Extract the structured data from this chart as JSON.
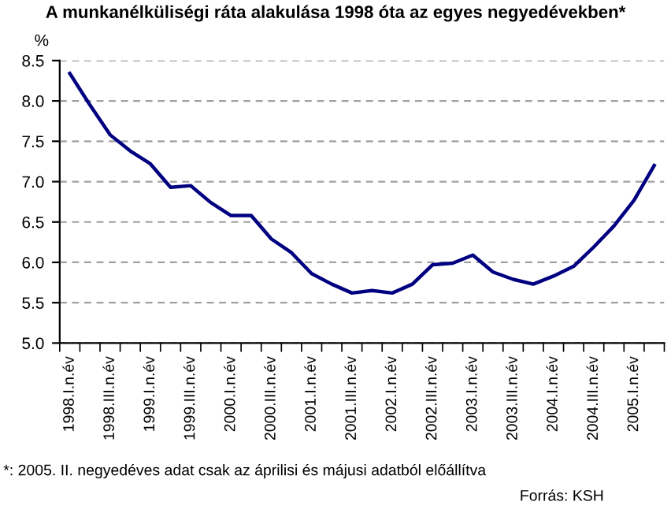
{
  "chart_data": {
    "type": "line",
    "title": "A munkanélküliségi ráta alakulása 1998 óta az egyes negyedévekben*",
    "ylabel": "%",
    "categories": [
      "1998.I.n.év",
      null,
      "1998.III.n.év",
      null,
      "1999.I.n.év",
      null,
      "1999.III.n.év",
      null,
      "2000.I.n.év",
      null,
      "2000.III.n.év",
      null,
      "2001.I.n.év",
      null,
      "2001.III.n.év",
      null,
      "2002.I.n.év",
      null,
      "2002.III.n.év",
      null,
      "2003.I.n.év",
      null,
      "2003.III.n.év",
      null,
      "2004.I.n.év",
      null,
      "2004.III.n.év",
      null,
      "2005.I.n.év",
      null
    ],
    "series": [
      {
        "color": "#000080",
        "values": [
          8.34,
          7.95,
          7.58,
          7.38,
          7.22,
          6.93,
          6.95,
          6.74,
          6.58,
          6.58,
          6.29,
          6.12,
          5.86,
          5.73,
          5.62,
          5.65,
          5.62,
          5.73,
          5.97,
          5.99,
          6.09,
          5.88,
          5.79,
          5.73,
          5.83,
          5.95,
          6.19,
          6.45,
          6.77,
          7.2
        ]
      }
    ],
    "ylim": [
      5.0,
      8.5
    ],
    "yticks": [
      {
        "value": 5.0,
        "label": "5.0"
      },
      {
        "value": 5.5,
        "label": "5.5"
      },
      {
        "value": 6.0,
        "label": "6.0"
      },
      {
        "value": 6.5,
        "label": "6.5"
      },
      {
        "value": 7.0,
        "label": "7.0"
      },
      {
        "value": 7.5,
        "label": "7.5"
      },
      {
        "value": 8.0,
        "label": "8.0"
      },
      {
        "value": 8.5,
        "label": "8.5"
      }
    ],
    "grid": "y",
    "marker": "none",
    "line_style": "solid",
    "annotations": [
      "*: 2005. II. negyedéves adat csak az áprilisi és májusi adatból előállítva",
      "Forrás: KSH"
    ]
  }
}
